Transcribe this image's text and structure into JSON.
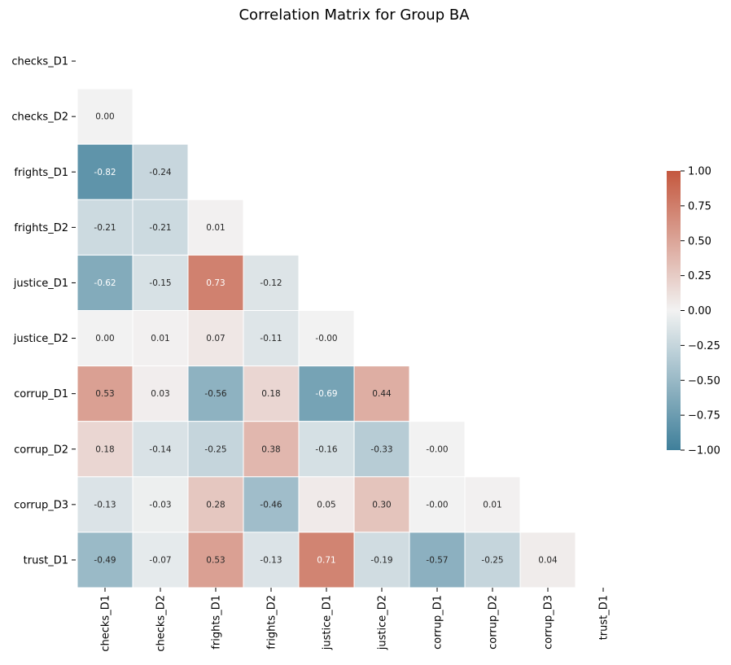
{
  "chart_data": {
    "type": "heatmap",
    "title": "Correlation Matrix for Group BA",
    "rows": [
      "checks_D1",
      "checks_D2",
      "frights_D1",
      "frights_D2",
      "justice_D1",
      "justice_D2",
      "corrup_D1",
      "corrup_D2",
      "corrup_D3",
      "trust_D1"
    ],
    "columns": [
      "checks_D1",
      "checks_D2",
      "frights_D1",
      "frights_D2",
      "justice_D1",
      "justice_D2",
      "corrup_D1",
      "corrup_D2",
      "corrup_D3",
      "trust_D1"
    ],
    "mask": "upper triangle including diagonal",
    "values": [
      [],
      [
        "0.00"
      ],
      [
        "-0.82",
        "-0.24"
      ],
      [
        "-0.21",
        "-0.21",
        "0.01"
      ],
      [
        "-0.62",
        "-0.15",
        "0.73",
        "-0.12"
      ],
      [
        "0.00",
        "0.01",
        "0.07",
        "-0.11",
        "-0.00"
      ],
      [
        "0.53",
        "0.03",
        "-0.56",
        "0.18",
        "-0.69",
        "0.44"
      ],
      [
        "0.18",
        "-0.14",
        "-0.25",
        "0.38",
        "-0.16",
        "-0.33",
        "-0.00"
      ],
      [
        "-0.13",
        "-0.03",
        "0.28",
        "-0.46",
        "0.05",
        "0.30",
        "-0.00",
        "0.01"
      ],
      [
        "-0.49",
        "-0.07",
        "0.53",
        "-0.13",
        "0.71",
        "-0.19",
        "-0.57",
        "-0.25",
        "0.04"
      ]
    ],
    "colorbar": {
      "range": [
        -1.0,
        1.0
      ],
      "ticks": [
        "1.00",
        "0.75",
        "0.50",
        "0.25",
        "0.00",
        "−0.25",
        "−0.50",
        "−0.75",
        "−1.00"
      ],
      "colors": {
        "negative": "#3f7f9a",
        "center": "#f2f2f2",
        "positive": "#c4573e"
      }
    }
  }
}
